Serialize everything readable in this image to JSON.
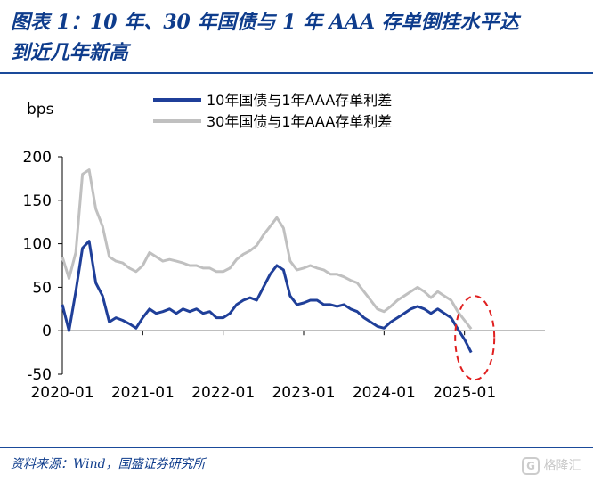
{
  "title": {
    "line1": "图表 1：10 年、30 年国债与 1 年 AAA 存单倒挂水平达",
    "line2": "到近几年新高"
  },
  "source": "资料来源：Wind，国盛证券研究所",
  "watermark": {
    "logo_glyph": "G",
    "text": "格隆汇"
  },
  "chart_data": {
    "type": "line",
    "y_unit_label": "bps",
    "ylim": [
      -50,
      200
    ],
    "yticks": [
      -50,
      0,
      50,
      100,
      150,
      200
    ],
    "xlim": [
      "2020-01",
      "2025-01"
    ],
    "x_tick_labels": [
      "2020-01",
      "2021-01",
      "2022-01",
      "2023-01",
      "2024-01",
      "2025-01"
    ],
    "legend_position": "top-center",
    "grid": false,
    "colors": {
      "series_10y": "#1f3f99",
      "series_30y": "#c0c0c0",
      "highlight": "#e02020",
      "axis": "#000000"
    },
    "series": [
      {
        "name": "10年国债与1年AAA存单利差",
        "color": "#1f3f99",
        "points": [
          [
            "2020-01",
            30
          ],
          [
            "2020-02",
            0
          ],
          [
            "2020-03",
            45
          ],
          [
            "2020-04",
            95
          ],
          [
            "2020-05",
            103
          ],
          [
            "2020-06",
            55
          ],
          [
            "2020-07",
            40
          ],
          [
            "2020-08",
            10
          ],
          [
            "2020-09",
            15
          ],
          [
            "2020-10",
            12
          ],
          [
            "2020-11",
            8
          ],
          [
            "2020-12",
            3
          ],
          [
            "2021-01",
            15
          ],
          [
            "2021-02",
            25
          ],
          [
            "2021-03",
            20
          ],
          [
            "2021-04",
            22
          ],
          [
            "2021-05",
            25
          ],
          [
            "2021-06",
            20
          ],
          [
            "2021-07",
            25
          ],
          [
            "2021-08",
            22
          ],
          [
            "2021-09",
            25
          ],
          [
            "2021-10",
            20
          ],
          [
            "2021-11",
            22
          ],
          [
            "2021-12",
            15
          ],
          [
            "2022-01",
            15
          ],
          [
            "2022-02",
            20
          ],
          [
            "2022-03",
            30
          ],
          [
            "2022-04",
            35
          ],
          [
            "2022-05",
            38
          ],
          [
            "2022-06",
            35
          ],
          [
            "2022-07",
            50
          ],
          [
            "2022-08",
            65
          ],
          [
            "2022-09",
            75
          ],
          [
            "2022-10",
            70
          ],
          [
            "2022-11",
            40
          ],
          [
            "2022-12",
            30
          ],
          [
            "2023-01",
            32
          ],
          [
            "2023-02",
            35
          ],
          [
            "2023-03",
            35
          ],
          [
            "2023-04",
            30
          ],
          [
            "2023-05",
            30
          ],
          [
            "2023-06",
            28
          ],
          [
            "2023-07",
            30
          ],
          [
            "2023-08",
            25
          ],
          [
            "2023-09",
            22
          ],
          [
            "2023-10",
            15
          ],
          [
            "2023-11",
            10
          ],
          [
            "2023-12",
            5
          ],
          [
            "2024-01",
            3
          ],
          [
            "2024-02",
            10
          ],
          [
            "2024-03",
            15
          ],
          [
            "2024-04",
            20
          ],
          [
            "2024-05",
            25
          ],
          [
            "2024-06",
            28
          ],
          [
            "2024-07",
            25
          ],
          [
            "2024-08",
            20
          ],
          [
            "2024-09",
            25
          ],
          [
            "2024-10",
            20
          ],
          [
            "2024-11",
            15
          ],
          [
            "2024-12",
            2
          ],
          [
            "2025-01",
            -10
          ],
          [
            "2025-02",
            -25
          ]
        ]
      },
      {
        "name": "30年国债与1年AAA存单利差",
        "color": "#c0c0c0",
        "points": [
          [
            "2020-01",
            85
          ],
          [
            "2020-02",
            60
          ],
          [
            "2020-03",
            90
          ],
          [
            "2020-04",
            180
          ],
          [
            "2020-05",
            185
          ],
          [
            "2020-06",
            140
          ],
          [
            "2020-07",
            120
          ],
          [
            "2020-08",
            85
          ],
          [
            "2020-09",
            80
          ],
          [
            "2020-10",
            78
          ],
          [
            "2020-11",
            72
          ],
          [
            "2020-12",
            68
          ],
          [
            "2021-01",
            75
          ],
          [
            "2021-02",
            90
          ],
          [
            "2021-03",
            85
          ],
          [
            "2021-04",
            80
          ],
          [
            "2021-05",
            82
          ],
          [
            "2021-06",
            80
          ],
          [
            "2021-07",
            78
          ],
          [
            "2021-08",
            75
          ],
          [
            "2021-09",
            75
          ],
          [
            "2021-10",
            72
          ],
          [
            "2021-11",
            72
          ],
          [
            "2021-12",
            68
          ],
          [
            "2022-01",
            68
          ],
          [
            "2022-02",
            72
          ],
          [
            "2022-03",
            82
          ],
          [
            "2022-04",
            88
          ],
          [
            "2022-05",
            92
          ],
          [
            "2022-06",
            98
          ],
          [
            "2022-07",
            110
          ],
          [
            "2022-08",
            120
          ],
          [
            "2022-09",
            130
          ],
          [
            "2022-10",
            118
          ],
          [
            "2022-11",
            80
          ],
          [
            "2022-12",
            70
          ],
          [
            "2023-01",
            72
          ],
          [
            "2023-02",
            75
          ],
          [
            "2023-03",
            72
          ],
          [
            "2023-04",
            70
          ],
          [
            "2023-05",
            65
          ],
          [
            "2023-06",
            65
          ],
          [
            "2023-07",
            62
          ],
          [
            "2023-08",
            58
          ],
          [
            "2023-09",
            55
          ],
          [
            "2023-10",
            45
          ],
          [
            "2023-11",
            35
          ],
          [
            "2023-12",
            25
          ],
          [
            "2024-01",
            22
          ],
          [
            "2024-02",
            28
          ],
          [
            "2024-03",
            35
          ],
          [
            "2024-04",
            40
          ],
          [
            "2024-05",
            45
          ],
          [
            "2024-06",
            50
          ],
          [
            "2024-07",
            45
          ],
          [
            "2024-08",
            38
          ],
          [
            "2024-09",
            45
          ],
          [
            "2024-10",
            40
          ],
          [
            "2024-11",
            35
          ],
          [
            "2024-12",
            22
          ],
          [
            "2025-01",
            12
          ],
          [
            "2025-02",
            2
          ]
        ]
      }
    ]
  }
}
